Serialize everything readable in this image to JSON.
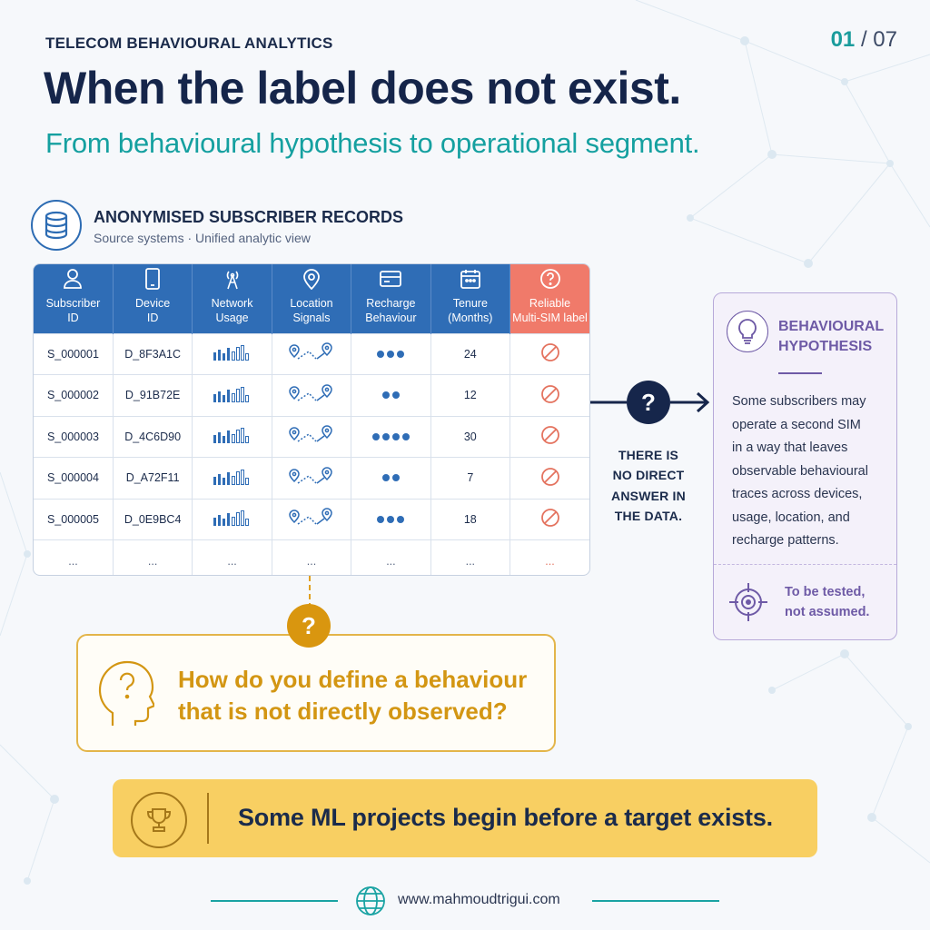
{
  "header": {
    "eyebrow": "TELECOM BEHAVIOURAL ANALYTICS",
    "page_current": "01",
    "page_sep": " / ",
    "page_total": "07",
    "title": "When the label does not exist.",
    "subtitle": "From behavioural hypothesis to operational segment."
  },
  "records": {
    "icon": "database-icon",
    "title": "ANONYMISED SUBSCRIBER RECORDS",
    "subtitle": "Source systems · Unified analytic view"
  },
  "table": {
    "columns": [
      {
        "l1": "Subscriber",
        "l2": "ID",
        "icon": "user-icon"
      },
      {
        "l1": "Device",
        "l2": "ID",
        "icon": "phone-icon"
      },
      {
        "l1": "Network",
        "l2": "Usage",
        "icon": "antenna-icon"
      },
      {
        "l1": "Location",
        "l2": "Signals",
        "icon": "location-pin-icon"
      },
      {
        "l1": "Recharge",
        "l2": "Behaviour",
        "icon": "card-icon"
      },
      {
        "l1": "Tenure",
        "l2": "(Months)",
        "icon": "calendar-icon"
      },
      {
        "l1": "Reliable",
        "l2": "Multi-SIM label",
        "icon": "question-circle-icon"
      }
    ],
    "rows": [
      {
        "subscriber": "S_000001",
        "device": "D_8F3A1C",
        "recharge_dots": 3,
        "tenure": "24"
      },
      {
        "subscriber": "S_000002",
        "device": "D_91B72E",
        "recharge_dots": 2,
        "tenure": "12"
      },
      {
        "subscriber": "S_000003",
        "device": "D_4C6D90",
        "recharge_dots": 4,
        "tenure": "30"
      },
      {
        "subscriber": "S_000004",
        "device": "D_A72F11",
        "recharge_dots": 2,
        "tenure": "7"
      },
      {
        "subscriber": "S_000005",
        "device": "D_0E9BC4",
        "recharge_dots": 3,
        "tenure": "18"
      }
    ],
    "ellipsis": "..."
  },
  "connector": {
    "question_mark": "?",
    "note_lines": [
      "THERE IS",
      "NO DIRECT",
      "ANSWER IN",
      "THE DATA."
    ]
  },
  "hypothesis": {
    "icon": "lightbulb-icon",
    "title_l1": "BEHAVIOURAL",
    "title_l2": "HYPOTHESIS",
    "body_lines": [
      "Some subscribers may",
      "operate a second SIM",
      "in a way that leaves",
      "observable behavioural",
      "traces across devices,",
      "usage, location, and",
      "recharge patterns."
    ],
    "foot_l1": "To be tested,",
    "foot_l2": "not assumed.",
    "foot_icon": "target-icon"
  },
  "question": {
    "badge": "?",
    "line1": "How do you define a behaviour",
    "line2": "that is not directly observed?",
    "icon": "head-question-icon"
  },
  "banner": {
    "icon": "trophy-icon",
    "text": "Some ML projects begin before a target exists."
  },
  "footer": {
    "icon": "globe-icon",
    "site": "www.mahmoudtrigui.com"
  },
  "colors": {
    "navy": "#15254a",
    "teal": "#15a0a0",
    "table_header": "#2f6db6",
    "warn_header": "#f07a6a",
    "purple": "#6e5aa6",
    "gold": "#d39613",
    "banner": "#f8cf62"
  }
}
